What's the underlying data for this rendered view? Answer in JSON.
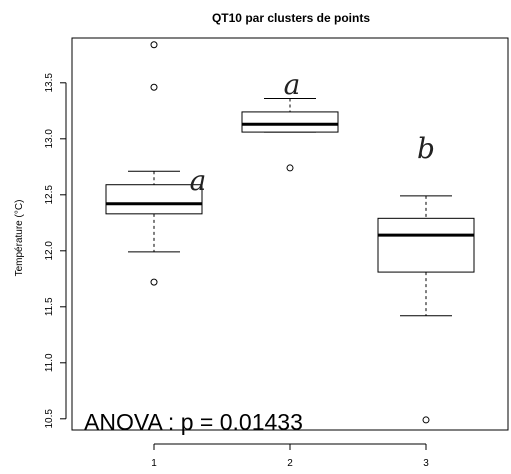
{
  "chart_data": {
    "type": "boxplot",
    "title": "QT10 par clusters de points",
    "xlabel": "",
    "ylabel": "Température (°C)",
    "categories": [
      "1",
      "2",
      "3"
    ],
    "ylim": [
      10.4,
      13.9
    ],
    "y_ticks": [
      "10.5",
      "11.0",
      "11.5",
      "12.0",
      "12.5",
      "13.0",
      "13.5"
    ],
    "grid": false,
    "boxes": [
      {
        "category": "1",
        "whisker_low": 11.99,
        "q1": 12.33,
        "median": 12.42,
        "q3": 12.59,
        "whisker_high": 12.71,
        "outliers": [
          11.72,
          13.46,
          13.84
        ],
        "letter": "a"
      },
      {
        "category": "2",
        "whisker_low": 13.06,
        "q1": 13.06,
        "median": 13.13,
        "q3": 13.24,
        "whisker_high": 13.36,
        "outliers": [
          12.74
        ],
        "letter": "a"
      },
      {
        "category": "3",
        "whisker_low": 11.42,
        "q1": 11.81,
        "median": 12.14,
        "q3": 12.29,
        "whisker_high": 12.49,
        "outliers": [
          10.49
        ],
        "letter": "b"
      }
    ],
    "annotation": "ANOVA : p = 0.01433"
  }
}
